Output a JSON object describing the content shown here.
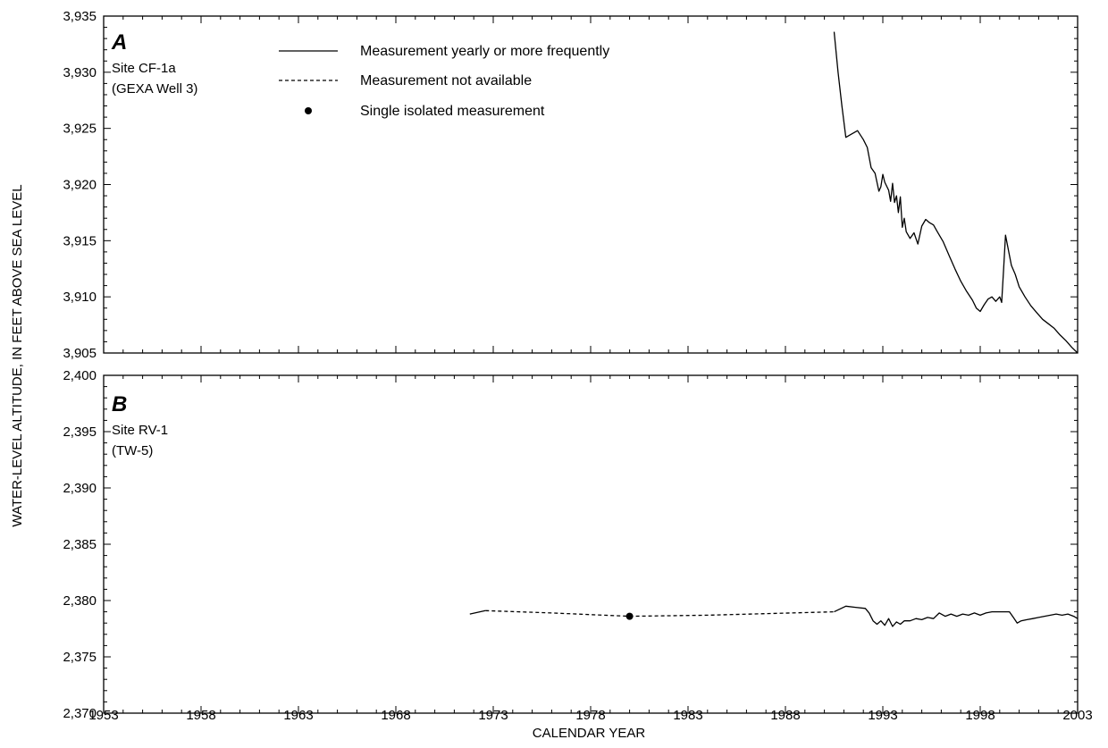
{
  "x_axis": {
    "label": "CALENDAR YEAR",
    "range": [
      1953,
      2003
    ],
    "ticks": [
      "1953",
      "1958",
      "1963",
      "1968",
      "1973",
      "1978",
      "1983",
      "1988",
      "1993",
      "1998",
      "2003"
    ]
  },
  "y_axis_label": "WATER-LEVEL ALTITUDE, IN FEET ABOVE SEA LEVEL",
  "legend": {
    "solid": "Measurement yearly or more frequently",
    "dashed": "Measurement not available",
    "point": "Single isolated measurement"
  },
  "chart_data": [
    {
      "type": "line",
      "panel": "A",
      "site": "Site CF-1a",
      "well": "(GEXA Well 3)",
      "xlim": [
        1953,
        2003
      ],
      "ylim": [
        3905,
        3935
      ],
      "yticks": [
        "3,905",
        "3,910",
        "3,915",
        "3,920",
        "3,925",
        "3,930",
        "3,935"
      ],
      "grid": false,
      "series": [
        {
          "style": "solid",
          "x": [
            1990.5,
            1990.7,
            1990.9,
            1991.1,
            1991.4,
            1991.7,
            1992.0,
            1992.2,
            1992.4,
            1992.6,
            1992.8,
            1992.9,
            1993.0,
            1993.1,
            1993.3,
            1993.4,
            1993.5,
            1993.6,
            1993.7,
            1993.8,
            1993.9,
            1994.0,
            1994.1,
            1994.2,
            1994.4,
            1994.6,
            1994.8,
            1995.0,
            1995.2,
            1995.4,
            1995.6,
            1995.8,
            1996.1,
            1996.4,
            1996.7,
            1997.0,
            1997.3,
            1997.6,
            1997.8,
            1998.0,
            1998.2,
            1998.4,
            1998.6,
            1998.8,
            1999.0,
            1999.1,
            1999.2,
            1999.3,
            1999.4,
            1999.5,
            1999.6,
            1999.8,
            2000.0,
            2000.3,
            2000.6,
            2000.9,
            2001.2,
            2001.5,
            2001.8,
            2002.1,
            2002.4,
            2002.7,
            2003.0
          ],
          "y": [
            3933.6,
            3930.0,
            3927.0,
            3924.2,
            3924.5,
            3924.8,
            3924.0,
            3923.3,
            3921.5,
            3921.0,
            3919.4,
            3919.8,
            3920.9,
            3920.2,
            3919.5,
            3918.5,
            3920.1,
            3918.4,
            3919.0,
            3917.5,
            3918.9,
            3916.2,
            3917.0,
            3915.8,
            3915.2,
            3915.7,
            3914.7,
            3916.3,
            3916.9,
            3916.6,
            3916.4,
            3915.8,
            3914.9,
            3913.7,
            3912.5,
            3911.4,
            3910.5,
            3909.7,
            3909.0,
            3908.7,
            3909.3,
            3909.8,
            3910.0,
            3909.6,
            3910.0,
            3909.5,
            3912.5,
            3915.5,
            3914.6,
            3913.7,
            3912.8,
            3912.0,
            3910.9,
            3910.0,
            3909.2,
            3908.6,
            3908.0,
            3907.6,
            3907.2,
            3906.6,
            3906.1,
            3905.5,
            3905.0
          ]
        }
      ]
    },
    {
      "type": "line",
      "panel": "B",
      "site": "Site RV-1",
      "well": "(TW-5)",
      "xlim": [
        1953,
        2003
      ],
      "ylim": [
        2370,
        2400
      ],
      "yticks": [
        "2,370",
        "2,375",
        "2,380",
        "2,385",
        "2,390",
        "2,395",
        "2,400"
      ],
      "grid": false,
      "series": [
        {
          "style": "solid",
          "x": [
            1971.8,
            1972.6
          ],
          "y": [
            2378.8,
            2379.1
          ]
        },
        {
          "style": "dashed",
          "x": [
            1972.6,
            1976.0,
            1980.0
          ],
          "y": [
            2379.1,
            2378.9,
            2378.6
          ]
        },
        {
          "style": "point",
          "x": [
            1980.0
          ],
          "y": [
            2378.6
          ]
        },
        {
          "style": "dashed",
          "x": [
            1980.0,
            1984.0,
            1990.5
          ],
          "y": [
            2378.6,
            2378.7,
            2379.0
          ]
        },
        {
          "style": "solid",
          "x": [
            1990.5,
            1991.1,
            1991.6,
            1992.1,
            1992.3,
            1992.5,
            1992.7,
            1992.9,
            1993.1,
            1993.3,
            1993.5,
            1993.7,
            1993.9,
            1994.1,
            1994.4,
            1994.7,
            1995.0,
            1995.3,
            1995.6,
            1995.9,
            1996.2,
            1996.5,
            1996.8,
            1997.1,
            1997.4,
            1997.7,
            1998.0,
            1998.3,
            1998.6,
            1998.9,
            1999.2,
            1999.5,
            1999.7,
            1999.9,
            2000.1,
            2000.4,
            2000.7,
            2001.0,
            2001.3,
            2001.6,
            2001.9,
            2002.2,
            2002.5,
            2002.8,
            2003.0
          ],
          "y": [
            2379.0,
            2379.5,
            2379.4,
            2379.3,
            2378.9,
            2378.2,
            2377.9,
            2378.2,
            2377.8,
            2378.4,
            2377.7,
            2378.1,
            2377.9,
            2378.2,
            2378.2,
            2378.4,
            2378.3,
            2378.5,
            2378.4,
            2378.9,
            2378.6,
            2378.8,
            2378.6,
            2378.8,
            2378.7,
            2378.9,
            2378.7,
            2378.9,
            2379.0,
            2379.0,
            2379.0,
            2379.0,
            2378.5,
            2378.0,
            2378.2,
            2378.3,
            2378.4,
            2378.5,
            2378.6,
            2378.7,
            2378.8,
            2378.7,
            2378.8,
            2378.6,
            2378.4
          ]
        }
      ]
    }
  ]
}
